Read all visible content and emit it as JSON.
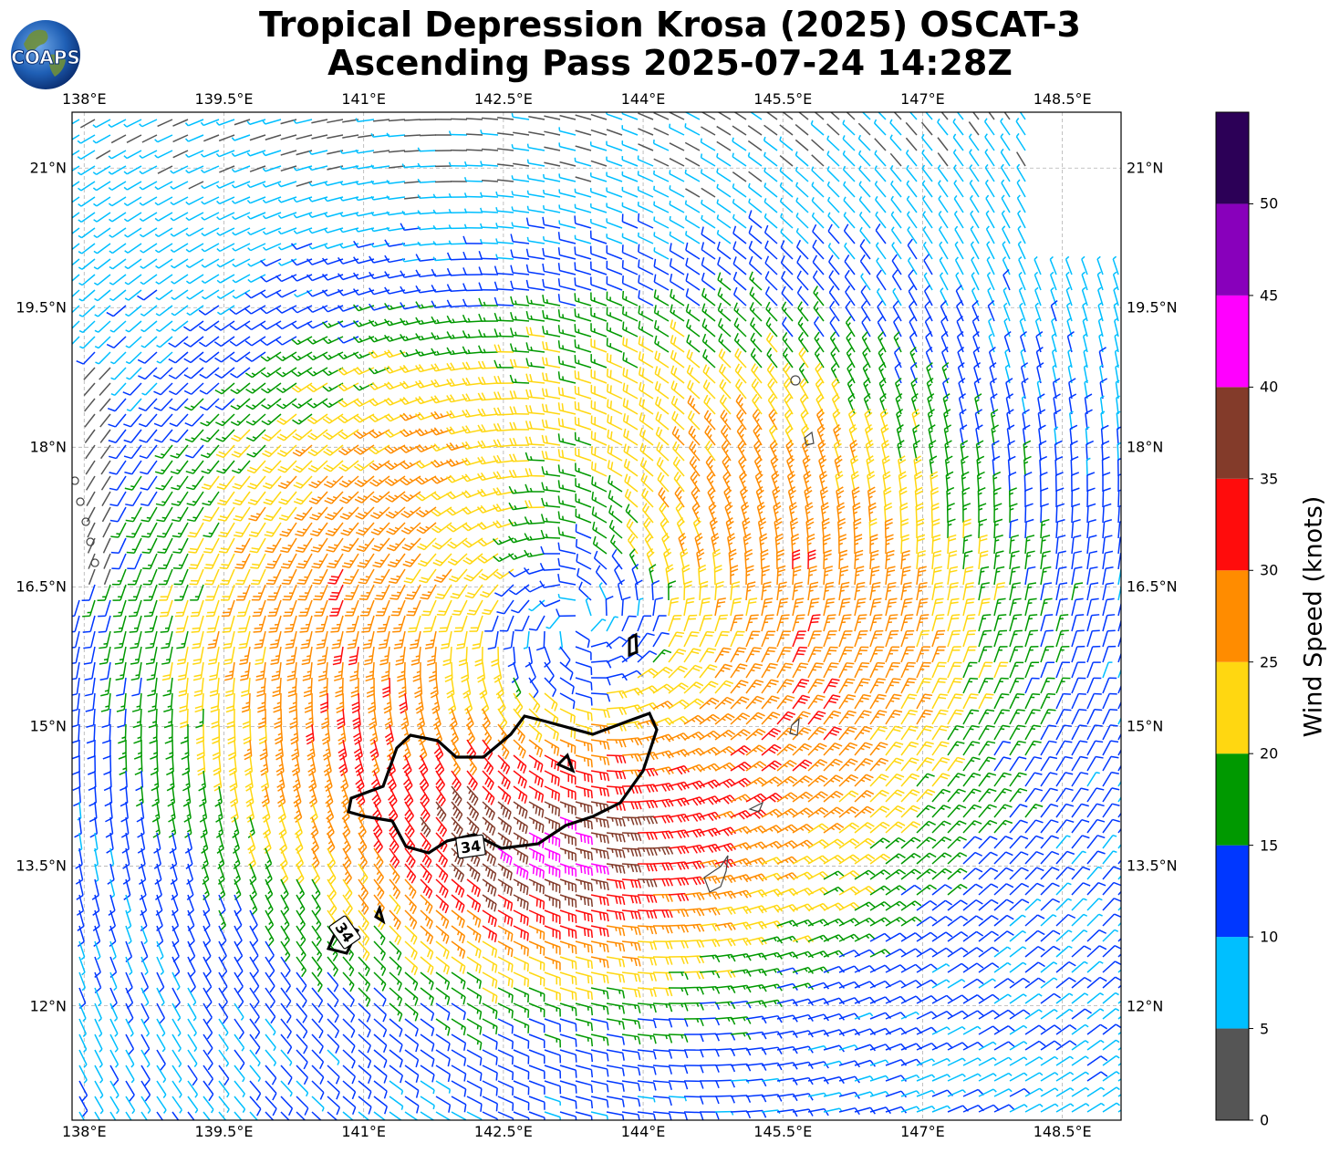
{
  "title": {
    "line1": "Tropical Depression Krosa (2025) OSCAT-3",
    "line2": "Ascending Pass 2025-07-24 14:28Z"
  },
  "logo": {
    "text": "COAPS",
    "icon": "globe-logo"
  },
  "axes": {
    "lon_labels": [
      "138°E",
      "139.5°E",
      "141°E",
      "142.5°E",
      "144°E",
      "145.5°E",
      "147°E",
      "148.5°E"
    ],
    "lat_labels": [
      "21°N",
      "19.5°N",
      "18°N",
      "16.5°N",
      "15°N",
      "13.5°N",
      "12°N"
    ],
    "lon_range": [
      137.87,
      149.13
    ],
    "lat_range": [
      10.77,
      21.6
    ]
  },
  "colorbar": {
    "label": "Wind Speed (knots)",
    "ticks": [
      "0",
      "5",
      "10",
      "15",
      "20",
      "25",
      "30",
      "35",
      "40",
      "45",
      "50"
    ],
    "bins": [
      {
        "min": 0,
        "max": 5,
        "color": "#555555"
      },
      {
        "min": 5,
        "max": 10,
        "color": "#00bfff"
      },
      {
        "min": 10,
        "max": 15,
        "color": "#0037ff"
      },
      {
        "min": 15,
        "max": 20,
        "color": "#009900"
      },
      {
        "min": 20,
        "max": 25,
        "color": "#ffd711"
      },
      {
        "min": 25,
        "max": 30,
        "color": "#ff8c00"
      },
      {
        "min": 30,
        "max": 35,
        "color": "#ff0c0c"
      },
      {
        "min": 35,
        "max": 40,
        "color": "#833b2a"
      },
      {
        "min": 40,
        "max": 45,
        "color": "#ff00ff"
      },
      {
        "min": 45,
        "max": 50,
        "color": "#8800bb"
      },
      {
        "min": 50,
        "max": 55,
        "color": "#2c0057"
      }
    ]
  },
  "contour": {
    "label": "34",
    "value_knots": 34
  },
  "storm_center": {
    "lon": 143.3,
    "lat": 16.1
  }
}
